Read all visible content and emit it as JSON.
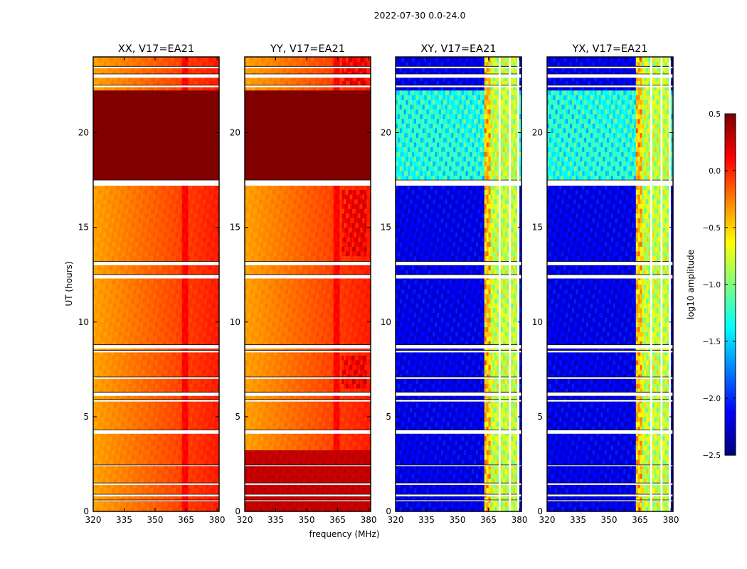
{
  "suptitle": "2022-07-30 0.0-24.0",
  "chart_data": {
    "type": "heatmap",
    "xlabel": "frequency (MHz)",
    "ylabel": "UT (hours)",
    "xlim": [
      320,
      381
    ],
    "ylim": [
      0,
      24
    ],
    "x_ticks": [
      320,
      335,
      350,
      365,
      380
    ],
    "y_ticks": [
      0,
      5,
      10,
      15,
      20
    ],
    "panels": [
      {
        "title": "XX, V17=EA21",
        "product": "XX",
        "scheme": "auto"
      },
      {
        "title": "YY, V17=EA21",
        "product": "YY",
        "scheme": "auto"
      },
      {
        "title": "XY, V17=EA21",
        "product": "XY",
        "scheme": "cross"
      },
      {
        "title": "YX, V17=EA21",
        "product": "YX",
        "scheme": "cross"
      }
    ],
    "colorbar": {
      "label": "log10 amplitude",
      "colormap": "jet",
      "range": [
        -2.5,
        0.5
      ],
      "ticks": [
        "0.5",
        "0.0",
        "−0.5",
        "−1.0",
        "−1.5",
        "−2.0",
        "−2.5"
      ]
    },
    "approx_levels": {
      "auto_base": -0.2,
      "auto_high_band_17_5_to_22_2h": 0.5,
      "yy_high_band_0_to_3_2h": 0.3,
      "cross_base": -2.2,
      "cross_band_17_5_to_22_2h": -1.3,
      "cross_rfi_channels_363_to_380MHz": -0.8
    },
    "data_gaps_hours": [
      [
        0.55,
        0.6
      ],
      [
        0.8,
        0.9
      ],
      [
        1.4,
        1.5
      ],
      [
        2.4,
        2.45
      ],
      [
        4.1,
        4.3
      ],
      [
        5.8,
        5.9
      ],
      [
        6.1,
        6.3
      ],
      [
        7.0,
        7.1
      ],
      [
        8.4,
        8.5
      ],
      [
        8.6,
        8.8
      ],
      [
        12.3,
        12.5
      ],
      [
        13.0,
        13.2
      ],
      [
        17.2,
        17.5
      ],
      [
        22.4,
        22.5
      ],
      [
        22.9,
        23.1
      ],
      [
        23.4,
        23.5
      ]
    ],
    "blank_channel_edges_mhz": [
      370,
      375,
      379
    ]
  }
}
